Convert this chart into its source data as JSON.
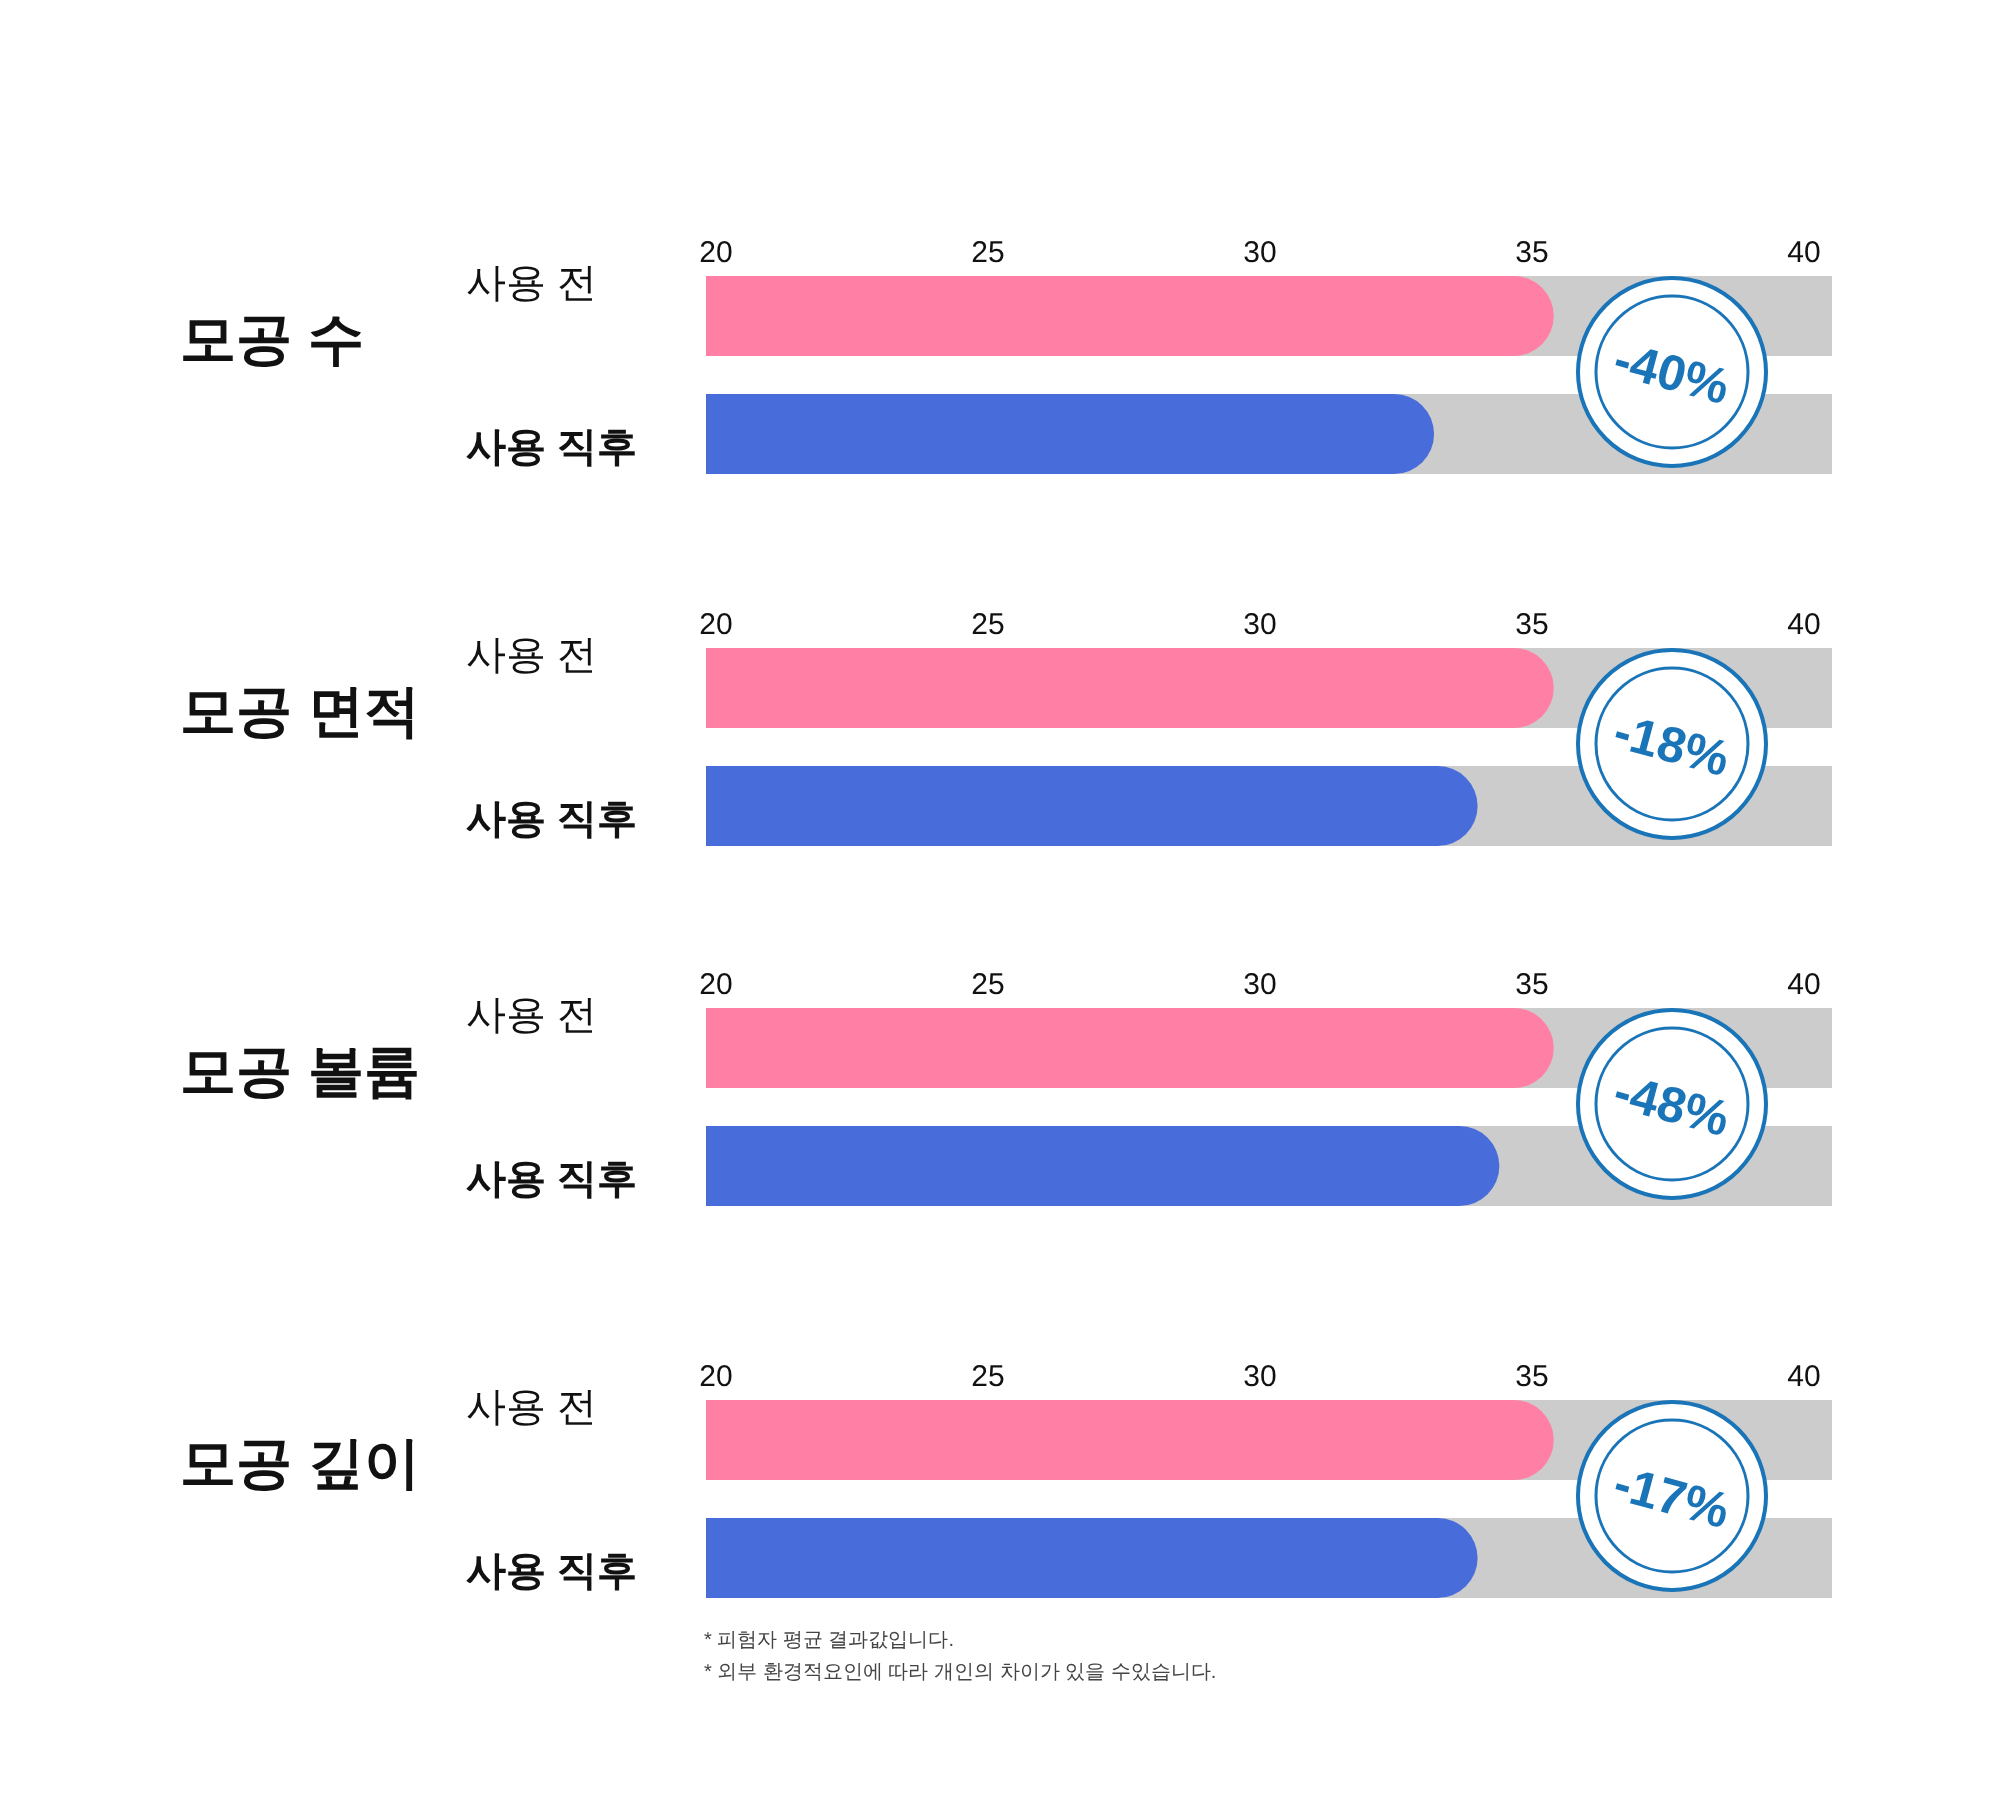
{
  "chart_data": [
    {
      "type": "bar",
      "orientation": "horizontal",
      "title": "모공 수",
      "categories": [
        "사용 전",
        "사용 직후"
      ],
      "values": [
        35.4,
        33.2
      ],
      "colors": [
        "#ff80a4",
        "#486ddb"
      ],
      "xlim": [
        20,
        40
      ],
      "xticks": [
        20,
        25,
        30,
        35,
        40
      ],
      "annotations": [
        "-40%"
      ]
    },
    {
      "type": "bar",
      "orientation": "horizontal",
      "title": "모공 면적",
      "categories": [
        "사용 전",
        "사용 직후"
      ],
      "values": [
        35.4,
        34.0
      ],
      "colors": [
        "#ff80a4",
        "#486ddb"
      ],
      "xlim": [
        20,
        40
      ],
      "xticks": [
        20,
        25,
        30,
        35,
        40
      ],
      "annotations": [
        "-18%"
      ]
    },
    {
      "type": "bar",
      "orientation": "horizontal",
      "title": "모공 볼륨",
      "categories": [
        "사용 전",
        "사용 직후"
      ],
      "values": [
        35.4,
        34.4
      ],
      "colors": [
        "#ff80a4",
        "#486ddb"
      ],
      "xlim": [
        20,
        40
      ],
      "xticks": [
        20,
        25,
        30,
        35,
        40
      ],
      "annotations": [
        "-48%"
      ]
    },
    {
      "type": "bar",
      "orientation": "horizontal",
      "title": "모공 깊이",
      "categories": [
        "사용 전",
        "사용 직후"
      ],
      "values": [
        35.4,
        34.0
      ],
      "colors": [
        "#ff80a4",
        "#486ddb"
      ],
      "xlim": [
        20,
        40
      ],
      "xticks": [
        20,
        25,
        30,
        35,
        40
      ],
      "annotations": [
        "-17%",
        "* 피험자 평균 결과값입니다.",
        "* 외부 환경적요인에 따라 개인의 차이가 있을 수있습니다."
      ]
    }
  ]
}
